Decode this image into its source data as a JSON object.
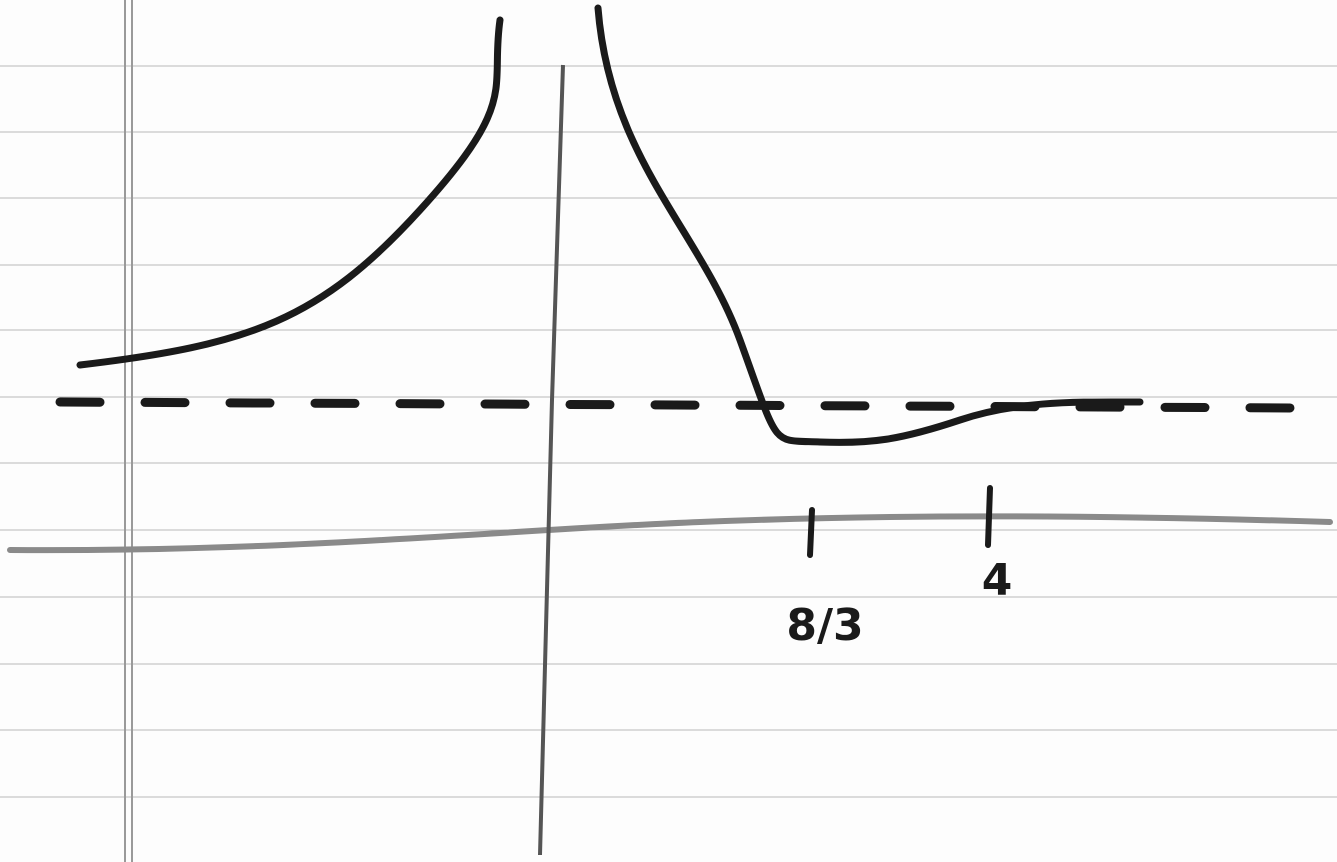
{
  "axis_labels": [
    "8/3",
    "4"
  ]
}
